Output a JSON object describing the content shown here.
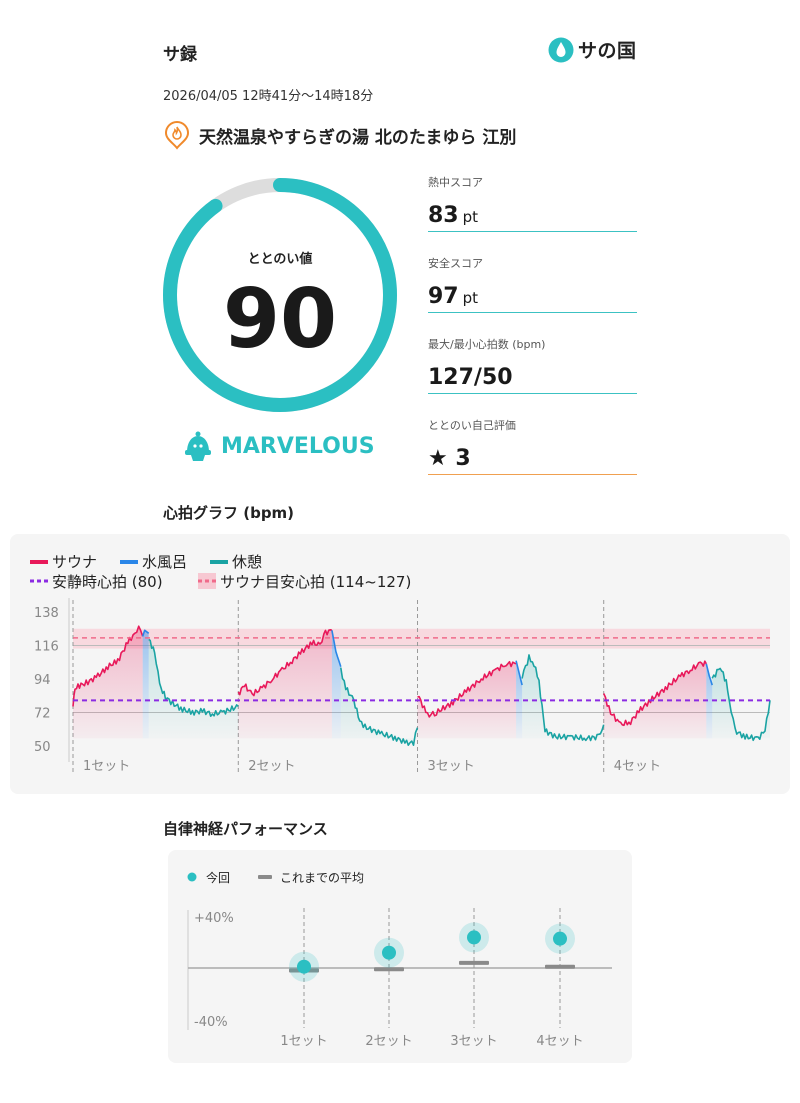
{
  "header": {
    "title": "サ録",
    "logo_text": "サの国"
  },
  "session": {
    "datetime": "2026/04/05 12時41分〜14時18分",
    "facility": "天然温泉やすらぎの湯 北のたまゆら 江別"
  },
  "gauge": {
    "label": "ととのい値",
    "value": "90",
    "fraction": 0.9,
    "rank": "MARVELOUS",
    "accent": "#2bbfc2",
    "track": "#dddddd"
  },
  "stats": {
    "heat": {
      "label": "熱中スコア",
      "value": "83",
      "unit": "pt"
    },
    "safety": {
      "label": "安全スコア",
      "value": "97",
      "unit": "pt"
    },
    "hr": {
      "label": "最大/最小心拍数 (bpm)",
      "value": "127/50"
    },
    "self": {
      "label": "ととのい自己評価",
      "star": "★",
      "value": "3"
    }
  },
  "hr_section": {
    "title": "心拍グラフ (bpm)"
  },
  "ans_section": {
    "title": "自律神経パフォーマンス"
  },
  "chart_data": [
    {
      "type": "line",
      "legend": {
        "sauna": "サウナ",
        "cold": "水風呂",
        "rest": "休憩",
        "resting": "安静時心拍 (80)",
        "target": "サウナ目安心拍 (114~127)"
      },
      "colors": {
        "sauna": "#e8195a",
        "cold": "#2a86e8",
        "rest": "#1aa3a3",
        "resting": "#8b2be2",
        "target": "#f06a8a"
      },
      "y_ticks": [
        "138",
        "116",
        "94",
        "72",
        "50"
      ],
      "ylim": [
        50,
        138
      ],
      "resting_hr": 80,
      "target_range": [
        114,
        127
      ],
      "set_labels": [
        "1セット",
        "2セット",
        "3セット",
        "4セット"
      ],
      "sets": [
        {
          "sauna": [
            [
              0,
              76
            ],
            [
              0.2,
              88
            ],
            [
              0.8,
              90
            ],
            [
              1.5,
              92
            ],
            [
              2.5,
              96
            ],
            [
              3.5,
              102
            ],
            [
              4.5,
              106
            ],
            [
              5.5,
              118
            ],
            [
              6.2,
              124
            ],
            [
              6.6,
              128
            ],
            [
              7,
              122
            ]
          ],
          "cold": [
            [
              7,
              122
            ],
            [
              7.2,
              126
            ],
            [
              7.6,
              124
            ]
          ],
          "rest": [
            [
              7.6,
              120
            ],
            [
              8.2,
              112
            ],
            [
              8.7,
              90
            ],
            [
              9.3,
              82
            ],
            [
              10,
              78
            ],
            [
              11,
              74
            ],
            [
              12,
              72
            ],
            [
              13,
              73
            ],
            [
              14,
              71
            ],
            [
              15,
              72
            ],
            [
              16.6,
              76
            ]
          ]
        },
        {
          "sauna": [
            [
              16.6,
              84
            ],
            [
              17.2,
              90
            ],
            [
              18,
              84
            ],
            [
              19,
              88
            ],
            [
              20,
              94
            ],
            [
              21,
              100
            ],
            [
              22,
              106
            ],
            [
              23,
              112
            ],
            [
              24,
              118
            ],
            [
              24.8,
              116
            ],
            [
              25.2,
              124
            ],
            [
              26,
              126
            ]
          ],
          "cold": [
            [
              26,
              126
            ],
            [
              26.4,
              112
            ],
            [
              26.9,
              102
            ]
          ],
          "rest": [
            [
              26.9,
              100
            ],
            [
              27.4,
              88
            ],
            [
              28.2,
              80
            ],
            [
              28.8,
              66
            ],
            [
              29.5,
              62
            ],
            [
              31,
              58
            ],
            [
              32.5,
              55
            ],
            [
              33.5,
              52
            ],
            [
              34.2,
              52
            ],
            [
              34.6,
              62
            ]
          ]
        },
        {
          "sauna": [
            [
              34.6,
              84
            ],
            [
              35.6,
              70
            ],
            [
              36.5,
              72
            ],
            [
              38,
              78
            ],
            [
              39.5,
              86
            ],
            [
              41,
              94
            ],
            [
              42.5,
              100
            ],
            [
              43.5,
              104
            ],
            [
              44.5,
              104
            ]
          ],
          "cold": [
            [
              44.5,
              106
            ],
            [
              44.8,
              98
            ],
            [
              45.1,
              90
            ]
          ],
          "rest": [
            [
              45.1,
              96
            ],
            [
              45.8,
              108
            ],
            [
              46.3,
              104
            ],
            [
              46.8,
              92
            ],
            [
              47.4,
              60
            ],
            [
              48.5,
              56
            ],
            [
              50,
              56
            ],
            [
              51.5,
              55
            ],
            [
              52.8,
              56
            ],
            [
              53.3,
              64
            ]
          ]
        },
        {
          "sauna": [
            [
              53.3,
              84
            ],
            [
              54,
              72
            ],
            [
              55,
              64
            ],
            [
              56,
              66
            ],
            [
              57,
              74
            ],
            [
              58,
              80
            ],
            [
              59.5,
              88
            ],
            [
              61,
              96
            ],
            [
              62,
              100
            ],
            [
              63,
              104
            ],
            [
              63.6,
              104
            ]
          ],
          "cold": [
            [
              63.6,
              104
            ],
            [
              63.9,
              96
            ],
            [
              64.2,
              90
            ]
          ],
          "rest": [
            [
              64.2,
              94
            ],
            [
              65,
              102
            ],
            [
              65.6,
              92
            ],
            [
              66.1,
              74
            ],
            [
              66.5,
              60
            ],
            [
              67.5,
              56
            ],
            [
              68.8,
              55
            ],
            [
              69.5,
              60
            ],
            [
              70,
              80
            ]
          ]
        }
      ],
      "x_max": 70,
      "set_starts": [
        0,
        16.6,
        34.6,
        53.3
      ]
    },
    {
      "type": "scatter",
      "legend": {
        "current": "今回",
        "average": "これまでの平均"
      },
      "y_ticks": [
        "+40%",
        "-40%"
      ],
      "ylim": [
        -40,
        40
      ],
      "categories": [
        "1セット",
        "2セット",
        "3セット",
        "4セット"
      ],
      "current": [
        1,
        12,
        24,
        23
      ],
      "average": [
        -2,
        -1,
        4,
        1
      ],
      "colors": {
        "current": "#2bbfc2",
        "average": "#8a8a8a"
      }
    }
  ]
}
